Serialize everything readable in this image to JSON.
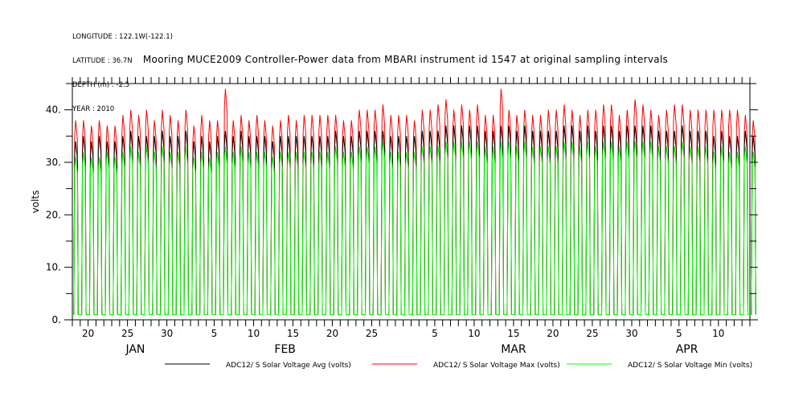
{
  "header": {
    "longitude": "LONGITUDE : 122.1W(-122.1)",
    "latitude": "LATITUDE : 36.7N",
    "depth": "DEPTH (m) : -2.5",
    "year": "YEAR : 2010"
  },
  "chart_data": {
    "type": "line",
    "title": "Mooring MUCE2009 Controller-Power data from MBARI instrument id 1547 at original sampling intervals",
    "xlabel": "",
    "ylabel": "volts",
    "ylim": [
      0,
      45
    ],
    "xlim": [
      "2010-01-18",
      "2010-04-14"
    ],
    "yticks": [
      0,
      10,
      20,
      30,
      40
    ],
    "ytick_labels": [
      "0.",
      "10.",
      "20.",
      "30.",
      "40."
    ],
    "xtick_labels": [
      {
        "date": "2010-01-20",
        "label": "20"
      },
      {
        "date": "2010-01-25",
        "label": "25"
      },
      {
        "date": "2010-01-30",
        "label": "30"
      },
      {
        "date": "2010-02-05",
        "label": "5"
      },
      {
        "date": "2010-02-10",
        "label": "10"
      },
      {
        "date": "2010-02-15",
        "label": "15"
      },
      {
        "date": "2010-02-20",
        "label": "20"
      },
      {
        "date": "2010-02-25",
        "label": "25"
      },
      {
        "date": "2010-03-05",
        "label": "5"
      },
      {
        "date": "2010-03-10",
        "label": "10"
      },
      {
        "date": "2010-03-15",
        "label": "15"
      },
      {
        "date": "2010-03-20",
        "label": "20"
      },
      {
        "date": "2010-03-25",
        "label": "25"
      },
      {
        "date": "2010-03-30",
        "label": "30"
      },
      {
        "date": "2010-04-05",
        "label": "5"
      },
      {
        "date": "2010-04-10",
        "label": "10"
      }
    ],
    "month_labels": [
      {
        "date": "2010-01-26",
        "label": "JAN"
      },
      {
        "date": "2010-02-14",
        "label": "FEB"
      },
      {
        "date": "2010-03-15",
        "label": "MAR"
      },
      {
        "date": "2010-04-06",
        "label": "APR"
      }
    ],
    "night_min": 1.0,
    "series": [
      {
        "name": "ADC12/ S Solar Voltage Avg (volts)",
        "color": "#000000",
        "daily_peak": [
          34,
          35,
          34,
          35,
          34,
          34,
          35,
          36,
          35,
          35,
          35,
          36,
          35,
          35,
          36,
          34,
          35,
          34,
          35,
          36,
          35,
          36,
          35,
          35,
          35,
          34,
          35,
          35,
          35,
          35,
          35,
          35,
          35,
          36,
          35,
          35,
          36,
          36,
          36,
          36,
          35,
          35,
          35,
          35,
          36,
          36,
          36,
          37,
          37,
          37,
          37,
          37,
          36,
          36,
          37,
          37,
          36,
          37,
          36,
          36,
          36,
          36,
          37,
          37,
          36,
          37,
          36,
          37,
          37,
          36,
          37,
          37,
          37,
          37,
          36,
          36,
          36,
          37,
          36,
          36,
          36,
          35,
          36,
          35,
          35,
          36,
          35
        ]
      },
      {
        "name": "ADC12/ S Solar Voltage Max (volts)",
        "color": "#ff0000",
        "daily_peak": [
          38,
          38,
          37,
          38,
          37,
          37,
          39,
          40,
          39,
          40,
          38,
          40,
          39,
          38,
          40,
          37,
          39,
          38,
          38,
          44,
          38,
          39,
          38,
          39,
          38,
          37,
          38,
          39,
          38,
          39,
          39,
          39,
          39,
          39,
          38,
          38,
          40,
          40,
          40,
          41,
          39,
          39,
          39,
          38,
          40,
          40,
          41,
          42,
          40,
          41,
          40,
          41,
          39,
          39,
          44,
          40,
          39,
          40,
          39,
          39,
          40,
          40,
          41,
          40,
          39,
          40,
          40,
          41,
          41,
          39,
          40,
          42,
          41,
          40,
          39,
          40,
          41,
          41,
          40,
          40,
          40,
          40,
          40,
          40,
          40,
          39,
          38
        ]
      },
      {
        "name": "ADC12/ S Solar Voltage Min (volts)",
        "color": "#00ff00",
        "daily_peak": [
          31,
          32,
          31,
          31,
          32,
          31,
          32,
          33,
          32,
          33,
          32,
          33,
          32,
          32,
          33,
          31,
          32,
          31,
          32,
          33,
          32,
          33,
          32,
          32,
          32,
          31,
          32,
          32,
          32,
          32,
          32,
          32,
          32,
          33,
          32,
          32,
          33,
          33,
          33,
          34,
          32,
          32,
          32,
          32,
          33,
          33,
          33,
          34,
          34,
          34,
          34,
          34,
          33,
          33,
          34,
          34,
          33,
          34,
          33,
          33,
          33,
          33,
          34,
          34,
          33,
          34,
          33,
          34,
          34,
          33,
          34,
          34,
          34,
          34,
          33,
          33,
          33,
          34,
          33,
          33,
          33,
          32,
          33,
          32,
          32,
          33,
          32
        ]
      }
    ]
  }
}
